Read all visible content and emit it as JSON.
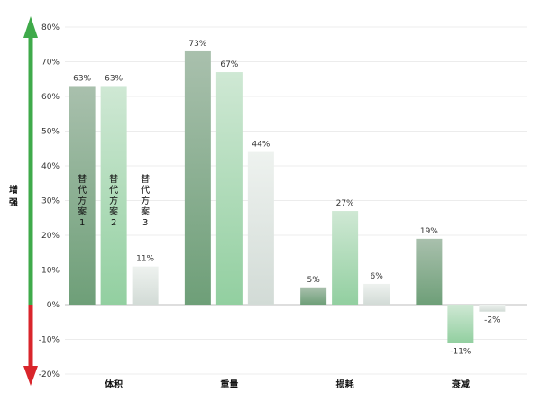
{
  "chart_data": {
    "type": "bar",
    "categories": [
      "体积",
      "重量",
      "损耗",
      "衰减"
    ],
    "series": [
      {
        "name": "替代方案1",
        "values": [
          63,
          73,
          5,
          19
        ],
        "color_top": "#a9c0ad",
        "color_bottom": "#6e9f78"
      },
      {
        "name": "替代方案2",
        "values": [
          63,
          67,
          27,
          -11
        ],
        "color_top": "#cfe8d4",
        "color_bottom": "#92cfa0"
      },
      {
        "name": "替代方案3",
        "values": [
          11,
          44,
          6,
          -2
        ],
        "color_top": "#eef2ef",
        "color_bottom": "#d2dbd6"
      }
    ],
    "data_labels": [
      [
        "63%",
        "73%",
        "5%",
        "19%"
      ],
      [
        "63%",
        "67%",
        "27%",
        "-11%"
      ],
      [
        "11%",
        "44%",
        "6%",
        "-2%"
      ]
    ],
    "in_bar_labels": [
      {
        "series": 0,
        "category": 0,
        "lines": [
          "替",
          "代",
          "方",
          "案",
          "1"
        ]
      },
      {
        "series": 1,
        "category": 0,
        "lines": [
          "替",
          "代",
          "方",
          "案",
          "2"
        ]
      },
      {
        "series": 2,
        "category": 0,
        "lines": [
          "替",
          "代",
          "方",
          "案",
          "3"
        ]
      }
    ],
    "ylim": [
      -20,
      80
    ],
    "yticks": [
      -20,
      -10,
      0,
      10,
      20,
      30,
      40,
      50,
      60,
      70,
      80
    ],
    "ytick_labels": [
      "-20%",
      "-10%",
      "0%",
      "10%",
      "20%",
      "30%",
      "40%",
      "50%",
      "60%",
      "70%",
      "80%"
    ],
    "grid": true,
    "side_label": [
      "增",
      "强"
    ],
    "arrow_colors": {
      "up": "#3faa4a",
      "down": "#d9252b"
    }
  }
}
